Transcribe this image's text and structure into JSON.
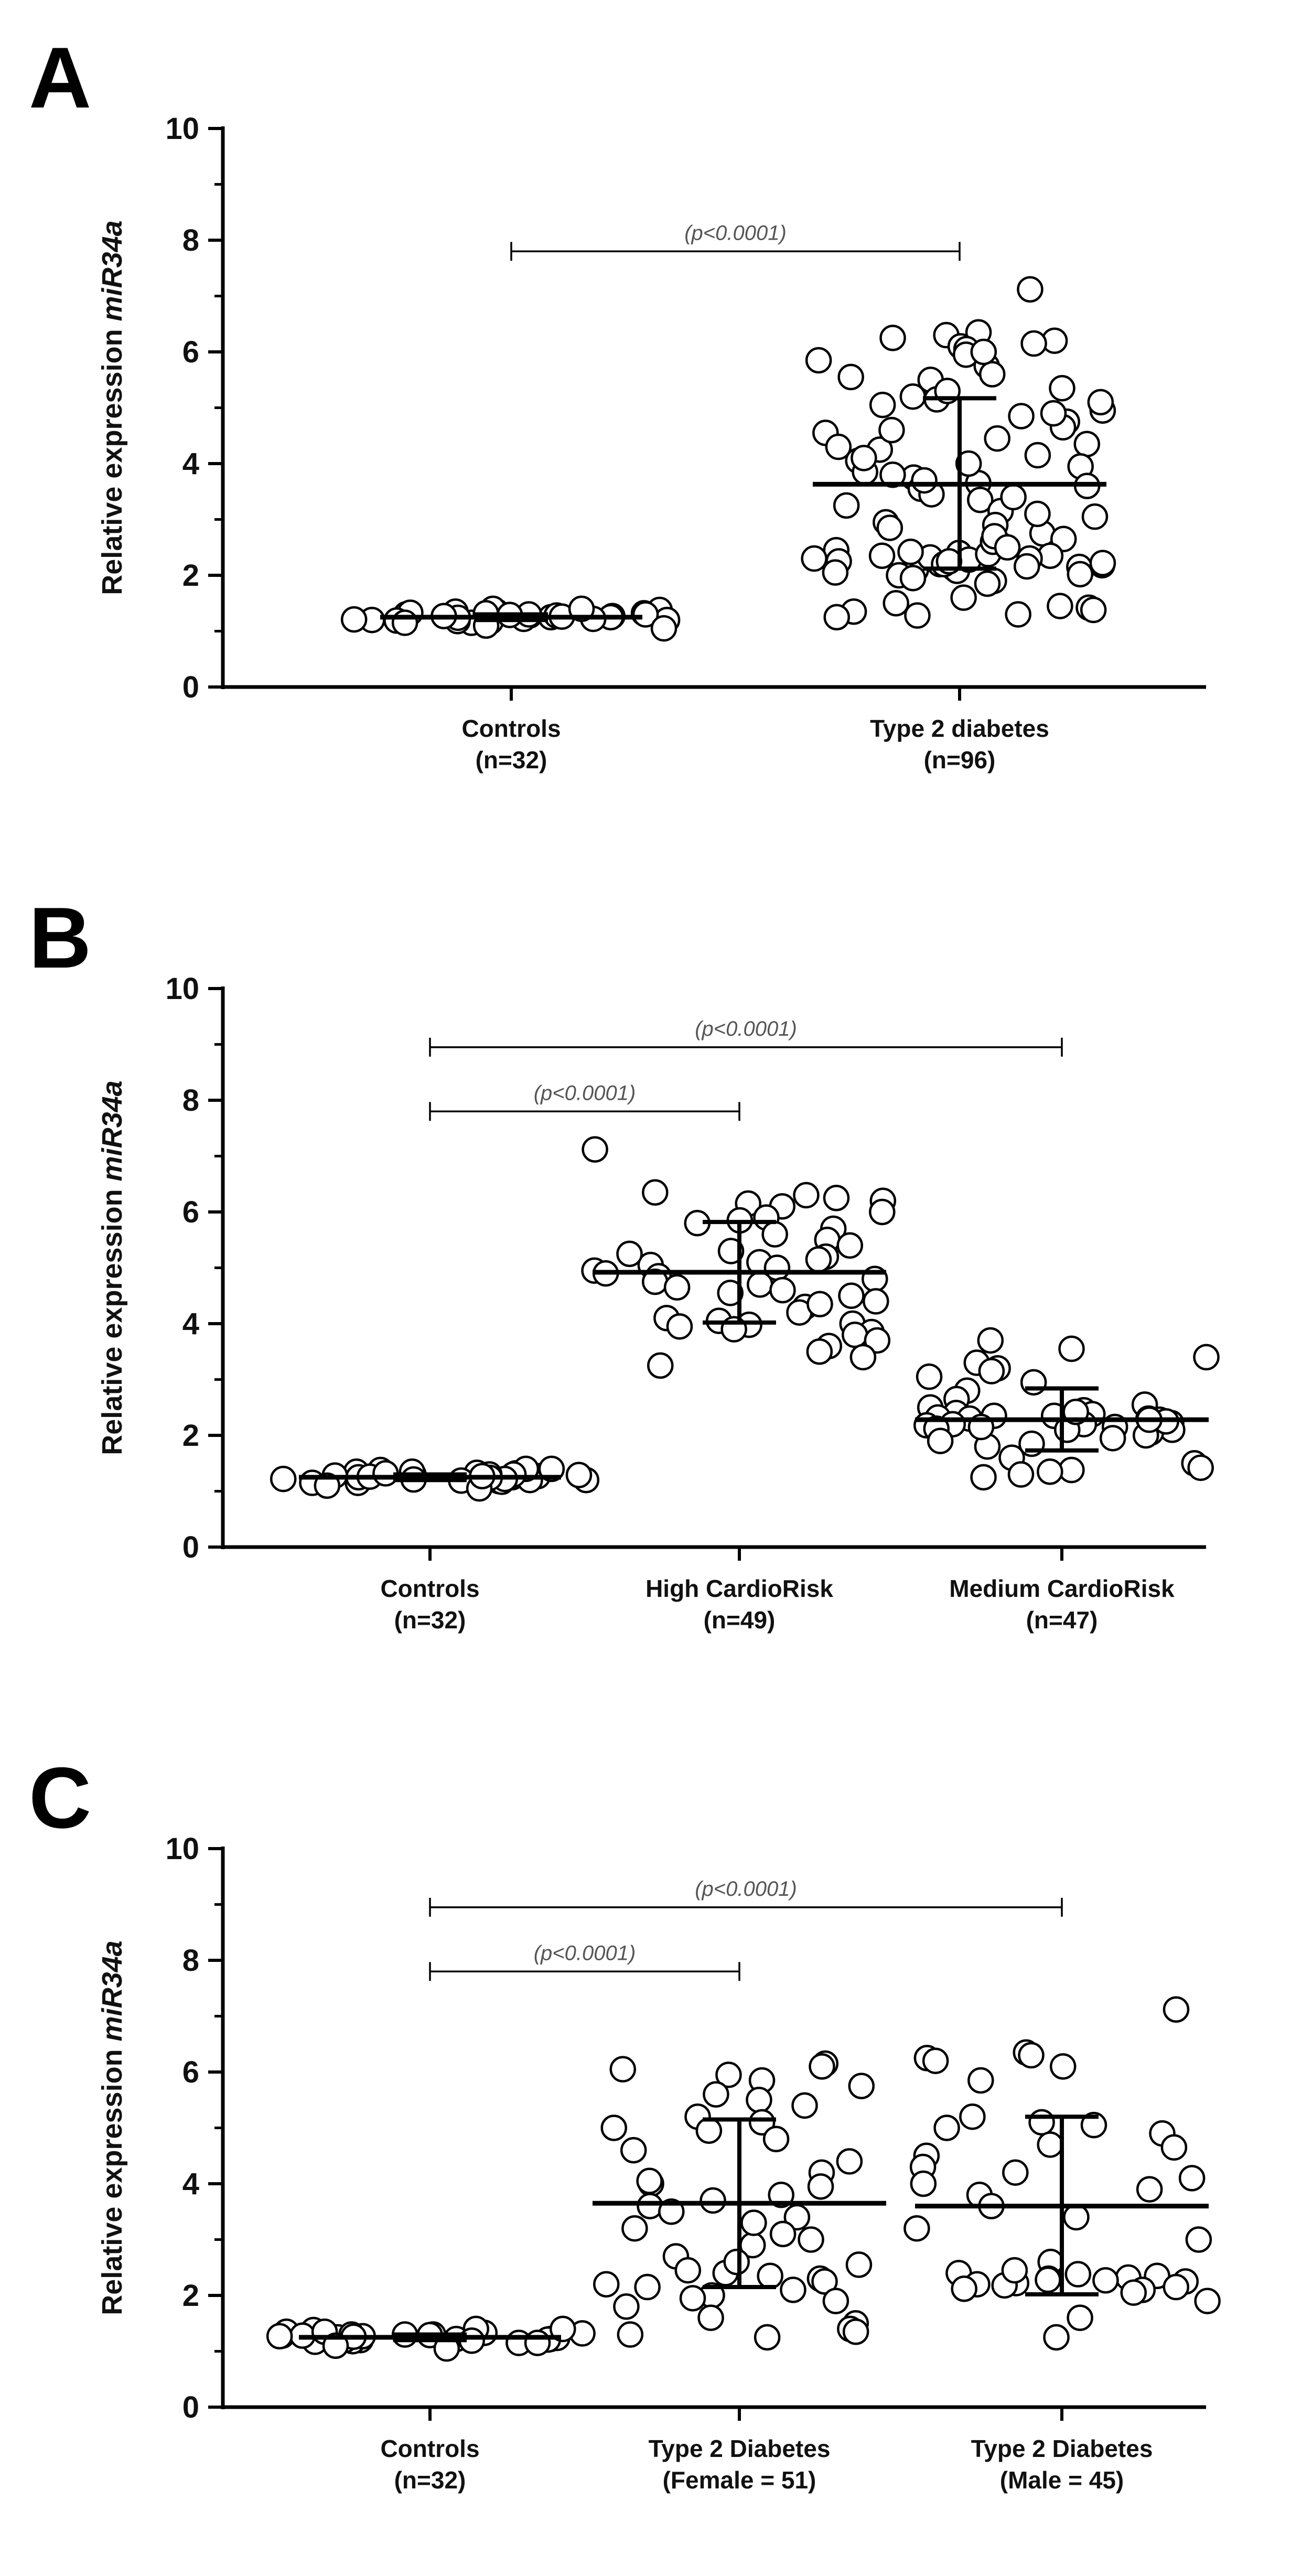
{
  "chart_data": [
    {
      "panel": "A",
      "type": "scatter",
      "ylabel_prefix": "Relative expression ",
      "ylabel_italic": "miR34a",
      "ylim": [
        0,
        10
      ],
      "yticks": [
        0,
        2,
        4,
        6,
        8,
        10
      ],
      "categories": [
        {
          "label": "Controls",
          "n_label": "(n=32)"
        },
        {
          "label": "Type 2 diabetes",
          "n_label": "(n=96)"
        }
      ],
      "series": [
        {
          "mean": 1.25,
          "sd_low": 1.2,
          "sd_high": 1.3,
          "values": [
            1.32,
            1.2,
            1.28,
            1.15,
            1.35,
            1.25,
            1.3,
            1.18,
            1.22,
            1.38,
            1.27,
            1.33,
            1.2,
            1.25,
            1.4,
            1.3,
            1.17,
            1.28,
            1.35,
            1.22,
            1.3,
            1.26,
            1.32,
            1.19,
            1.24,
            1.29,
            1.21,
            1.15,
            1.1,
            1.05,
            1.4,
            1.27
          ]
        },
        {
          "mean": 3.63,
          "sd_low": 2.12,
          "sd_high": 5.17,
          "values": [
            7.12,
            6.35,
            6.3,
            6.25,
            6.2,
            6.15,
            6.1,
            6.05,
            5.95,
            5.85,
            5.75,
            5.6,
            5.5,
            5.35,
            5.2,
            5.15,
            5.05,
            4.95,
            4.85,
            4.75,
            4.65,
            4.55,
            4.45,
            4.35,
            4.25,
            4.15,
            4.05,
            3.95,
            3.85,
            3.75,
            3.65,
            3.55,
            3.45,
            3.35,
            3.25,
            3.15,
            3.05,
            2.95,
            2.85,
            2.75,
            2.65,
            2.55,
            2.45,
            2.4,
            2.35,
            2.3,
            2.25,
            2.2,
            2.18,
            2.15,
            2.12,
            2.1,
            2.08,
            2.05,
            2.02,
            2.0,
            1.95,
            1.9,
            1.85,
            1.6,
            1.5,
            1.42,
            1.38,
            1.35,
            1.3,
            1.25,
            2.22,
            2.28,
            2.32,
            2.38,
            2.2,
            2.25,
            2.3,
            2.16,
            2.42,
            2.35,
            4.9,
            5.1,
            4.6,
            4.3,
            4.0,
            3.7,
            3.4,
            3.1,
            2.9,
            2.6,
            5.55,
            5.3,
            6.0,
            4.1,
            3.8,
            3.6,
            2.7,
            2.5,
            1.45,
            1.28
          ]
        }
      ],
      "comparisons": [
        {
          "from": 0,
          "to": 1,
          "y": 7.8,
          "label": "(p<0.0001)"
        }
      ]
    },
    {
      "panel": "B",
      "type": "scatter",
      "ylabel_prefix": "Relative expression ",
      "ylabel_italic": "miR34a",
      "ylim": [
        0,
        10
      ],
      "yticks": [
        0,
        2,
        4,
        6,
        8,
        10
      ],
      "categories": [
        {
          "label": "Controls",
          "n_label": "(n=32)"
        },
        {
          "label": "High CardioRisk",
          "n_label": "(n=49)"
        },
        {
          "label": "Medium CardioRisk",
          "n_label": "(n=47)"
        }
      ],
      "series": [
        {
          "mean": 1.25,
          "sd_low": 1.2,
          "sd_high": 1.3,
          "values": [
            1.32,
            1.2,
            1.28,
            1.15,
            1.35,
            1.25,
            1.3,
            1.18,
            1.22,
            1.38,
            1.27,
            1.33,
            1.2,
            1.25,
            1.4,
            1.3,
            1.17,
            1.28,
            1.35,
            1.22,
            1.3,
            1.26,
            1.32,
            1.19,
            1.24,
            1.29,
            1.21,
            1.15,
            1.1,
            1.05,
            1.4,
            1.27
          ]
        },
        {
          "mean": 4.92,
          "sd_low": 4.02,
          "sd_high": 5.82,
          "values": [
            7.12,
            6.35,
            6.3,
            6.25,
            6.2,
            6.15,
            6.1,
            6.0,
            5.9,
            5.85,
            5.8,
            5.7,
            5.6,
            5.5,
            5.4,
            5.3,
            5.2,
            5.15,
            5.1,
            5.05,
            5.0,
            4.95,
            4.9,
            4.85,
            4.8,
            4.75,
            4.7,
            4.65,
            4.6,
            4.55,
            4.5,
            4.4,
            4.3,
            4.2,
            4.1,
            4.05,
            4.0,
            3.98,
            3.95,
            3.9,
            3.85,
            3.8,
            3.7,
            3.6,
            3.5,
            3.4,
            3.25,
            4.35,
            5.25
          ]
        },
        {
          "mean": 2.28,
          "sd_low": 1.73,
          "sd_high": 2.84,
          "values": [
            3.7,
            3.55,
            3.4,
            3.3,
            3.2,
            3.15,
            3.05,
            2.95,
            2.8,
            2.65,
            2.55,
            2.5,
            2.45,
            2.4,
            2.38,
            2.35,
            2.32,
            2.3,
            2.28,
            2.25,
            2.22,
            2.2,
            2.18,
            2.15,
            2.12,
            2.1,
            2.05,
            2.0,
            1.95,
            1.9,
            1.85,
            1.8,
            1.6,
            1.5,
            1.42,
            1.38,
            1.35,
            1.3,
            1.25,
            2.35,
            2.3,
            2.25,
            2.2,
            2.15,
            2.1,
            2.42,
            2.28
          ]
        }
      ],
      "comparisons": [
        {
          "from": 0,
          "to": 1,
          "y": 7.8,
          "label": "(p<0.0001)"
        },
        {
          "from": 0,
          "to": 2,
          "y": 8.95,
          "label": "(p<0.0001)"
        }
      ]
    },
    {
      "panel": "C",
      "type": "scatter",
      "ylabel_prefix": "Relative expression ",
      "ylabel_italic": "miR34a",
      "ylim": [
        0,
        10
      ],
      "yticks": [
        0,
        2,
        4,
        6,
        8,
        10
      ],
      "categories": [
        {
          "label": "Controls",
          "n_label": "(n=32)"
        },
        {
          "label": "Type 2 Diabetes",
          "n_label": "(Female = 51)"
        },
        {
          "label": "Type 2 Diabetes",
          "n_label": "(Male = 45)"
        }
      ],
      "series": [
        {
          "mean": 1.25,
          "sd_low": 1.2,
          "sd_high": 1.3,
          "values": [
            1.32,
            1.2,
            1.28,
            1.15,
            1.35,
            1.25,
            1.3,
            1.18,
            1.22,
            1.38,
            1.27,
            1.33,
            1.2,
            1.25,
            1.4,
            1.3,
            1.17,
            1.28,
            1.35,
            1.22,
            1.3,
            1.26,
            1.32,
            1.19,
            1.24,
            1.29,
            1.21,
            1.15,
            1.1,
            1.05,
            1.4,
            1.27
          ]
        },
        {
          "mean": 3.65,
          "sd_low": 2.15,
          "sd_high": 5.15,
          "values": [
            6.15,
            6.1,
            6.05,
            5.95,
            5.85,
            5.75,
            5.6,
            5.5,
            5.4,
            5.2,
            5.1,
            5.0,
            4.95,
            4.8,
            4.6,
            4.4,
            4.2,
            4.0,
            3.95,
            3.8,
            3.7,
            3.6,
            3.5,
            3.4,
            3.2,
            3.1,
            3.0,
            2.9,
            2.7,
            2.55,
            2.45,
            2.4,
            2.35,
            2.3,
            2.25,
            2.2,
            2.15,
            2.1,
            2.0,
            1.95,
            1.8,
            1.6,
            1.5,
            1.4,
            1.35,
            1.3,
            1.25,
            4.05,
            3.3,
            2.6,
            1.9
          ]
        },
        {
          "mean": 3.6,
          "sd_low": 2.02,
          "sd_high": 5.2,
          "values": [
            7.12,
            6.35,
            6.3,
            6.25,
            6.2,
            6.1,
            5.85,
            5.2,
            5.1,
            5.0,
            4.9,
            4.7,
            4.5,
            4.3,
            4.2,
            4.1,
            4.0,
            3.9,
            3.8,
            3.6,
            3.4,
            3.2,
            3.0,
            2.6,
            2.4,
            2.38,
            2.35,
            2.32,
            2.3,
            2.28,
            2.25,
            2.22,
            2.2,
            2.18,
            2.15,
            2.12,
            2.1,
            2.05,
            1.9,
            1.6,
            1.25,
            4.65,
            5.05,
            2.45,
            2.27
          ]
        }
      ],
      "comparisons": [
        {
          "from": 0,
          "to": 1,
          "y": 7.8,
          "label": "(p<0.0001)"
        },
        {
          "from": 0,
          "to": 2,
          "y": 8.95,
          "label": "(p<0.0001)"
        }
      ]
    }
  ]
}
